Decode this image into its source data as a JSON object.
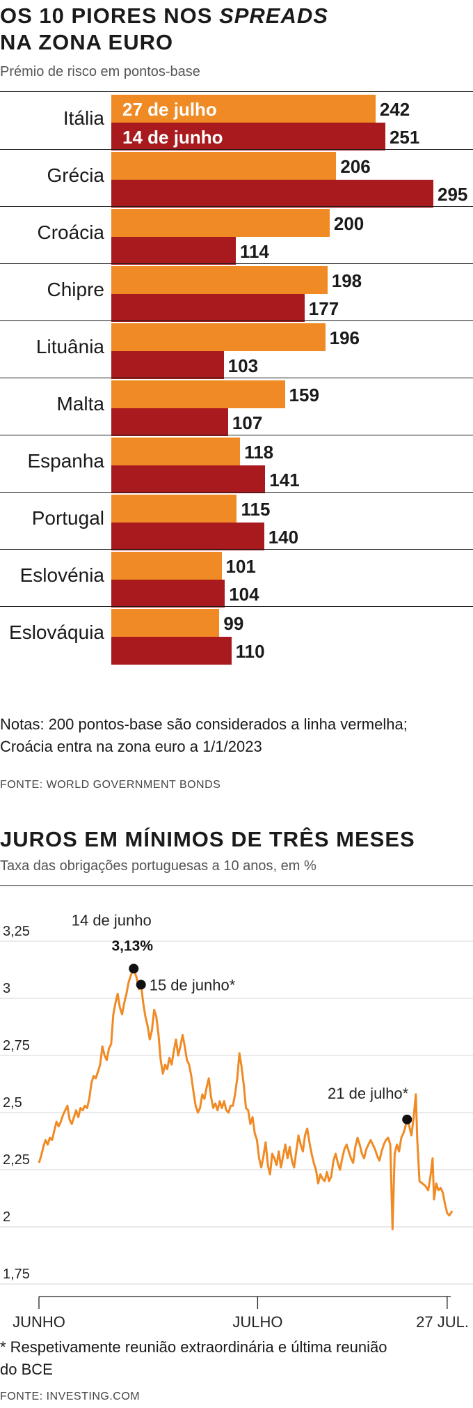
{
  "bar_section": {
    "title_part1": "OS 10 PIORES NOS ",
    "title_italic": "SPREADS",
    "title_line2": "NA ZONA EURO",
    "subtitle": "Prémio de risco em pontos-base",
    "notes_line1": "Notas: 200 pontos-base são considerados a linha vermelha;",
    "notes_line2": "Croácia entra na zona euro a 1/1/2023",
    "source": "FONTE: WORLD GOVERNMENT BONDS"
  },
  "line_section": {
    "title": "JUROS EM MÍNIMOS DE TRÊS MESES",
    "subtitle": "Taxa das obrigações portuguesas a 10 anos, em %",
    "footnote_line1": "* Respetivamente reunião extraordinária e última reunião",
    "footnote_line2": "do BCE",
    "source": "FONTE: INVESTING.COM"
  },
  "colors": {
    "orange": "#f08a24",
    "dark_red": "#a81a1e",
    "line": "#f08a24"
  },
  "chart_data": [
    {
      "type": "bar",
      "title": "OS 10 PIORES NOS SPREADS NA ZONA EURO",
      "subtitle": "Prémio de risco em pontos-base",
      "categories": [
        "Itália",
        "Grécia",
        "Croácia",
        "Chipre",
        "Lituânia",
        "Malta",
        "Espanha",
        "Portugal",
        "Eslovénia",
        "Eslováquia"
      ],
      "series": [
        {
          "name": "27 de julho",
          "color": "#f08a24",
          "values": [
            242,
            206,
            200,
            198,
            196,
            159,
            118,
            115,
            101,
            99
          ]
        },
        {
          "name": "14 de junho",
          "color": "#a81a1e",
          "values": [
            251,
            295,
            114,
            177,
            103,
            107,
            141,
            140,
            104,
            110
          ]
        }
      ],
      "orientation": "horizontal",
      "xlim": [
        0,
        295
      ],
      "legend": "inside-first-bars"
    },
    {
      "type": "line",
      "title": "JUROS EM MÍNIMOS DE TRÊS MESES",
      "subtitle": "Taxa das obrigações portuguesas a 10 anos, em %",
      "ylim": [
        1.75,
        3.25
      ],
      "yticks": [
        3.25,
        3,
        2.75,
        2.5,
        2.25,
        2,
        1.75
      ],
      "ytick_labels": [
        "3,25",
        "3",
        "2,75",
        "2,5",
        "2,25",
        "2",
        "1,75"
      ],
      "xticks": [
        {
          "label": "JUNHO",
          "day": 0
        },
        {
          "label": "JULHO",
          "day": 30
        },
        {
          "label": "27 JUL.",
          "day": 56
        }
      ],
      "grid": true,
      "annotations": [
        {
          "label": "14 de junho",
          "value_label": "3,13%",
          "day": 13,
          "y": 3.13
        },
        {
          "label": "15 de junho*",
          "day": 14,
          "y": 3.06
        },
        {
          "label": "21 de julho*",
          "day": 50.5,
          "y": 2.47
        }
      ],
      "points": [
        [
          0,
          2.28
        ],
        [
          0.3,
          2.31
        ],
        [
          0.6,
          2.35
        ],
        [
          0.9,
          2.38
        ],
        [
          1.2,
          2.36
        ],
        [
          1.5,
          2.39
        ],
        [
          1.8,
          2.38
        ],
        [
          2.1,
          2.42
        ],
        [
          2.4,
          2.46
        ],
        [
          2.7,
          2.44
        ],
        [
          3.0,
          2.46
        ],
        [
          3.3,
          2.49
        ],
        [
          3.6,
          2.51
        ],
        [
          3.9,
          2.53
        ],
        [
          4.2,
          2.47
        ],
        [
          4.5,
          2.45
        ],
        [
          4.8,
          2.48
        ],
        [
          5.1,
          2.51
        ],
        [
          5.4,
          2.48
        ],
        [
          5.7,
          2.52
        ],
        [
          6.0,
          2.51
        ],
        [
          6.3,
          2.53
        ],
        [
          6.6,
          2.52
        ],
        [
          6.9,
          2.56
        ],
        [
          7.2,
          2.63
        ],
        [
          7.5,
          2.66
        ],
        [
          7.8,
          2.65
        ],
        [
          8.1,
          2.68
        ],
        [
          8.4,
          2.71
        ],
        [
          8.7,
          2.79
        ],
        [
          9.0,
          2.75
        ],
        [
          9.3,
          2.73
        ],
        [
          9.6,
          2.78
        ],
        [
          9.9,
          2.8
        ],
        [
          10.2,
          2.93
        ],
        [
          10.5,
          2.98
        ],
        [
          10.8,
          3.02
        ],
        [
          11.1,
          2.96
        ],
        [
          11.4,
          2.93
        ],
        [
          11.7,
          2.98
        ],
        [
          12.0,
          3.02
        ],
        [
          12.3,
          3.07
        ],
        [
          12.6,
          3.1
        ],
        [
          13.0,
          3.13
        ],
        [
          13.4,
          3.09
        ],
        [
          13.7,
          3.04
        ],
        [
          14.0,
          3.06
        ],
        [
          14.3,
          2.98
        ],
        [
          14.6,
          2.92
        ],
        [
          14.9,
          2.88
        ],
        [
          15.2,
          2.82
        ],
        [
          15.5,
          2.86
        ],
        [
          15.8,
          2.95
        ],
        [
          16.1,
          2.92
        ],
        [
          16.4,
          2.84
        ],
        [
          16.7,
          2.73
        ],
        [
          17.0,
          2.67
        ],
        [
          17.3,
          2.71
        ],
        [
          17.6,
          2.69
        ],
        [
          17.9,
          2.74
        ],
        [
          18.2,
          2.71
        ],
        [
          18.5,
          2.77
        ],
        [
          18.8,
          2.82
        ],
        [
          19.1,
          2.75
        ],
        [
          19.4,
          2.79
        ],
        [
          19.7,
          2.84
        ],
        [
          20.0,
          2.79
        ],
        [
          20.3,
          2.73
        ],
        [
          20.6,
          2.71
        ],
        [
          20.9,
          2.66
        ],
        [
          21.2,
          2.59
        ],
        [
          21.5,
          2.53
        ],
        [
          21.8,
          2.5
        ],
        [
          22.1,
          2.52
        ],
        [
          22.4,
          2.58
        ],
        [
          22.7,
          2.56
        ],
        [
          23.0,
          2.61
        ],
        [
          23.3,
          2.65
        ],
        [
          23.6,
          2.57
        ],
        [
          23.9,
          2.52
        ],
        [
          24.2,
          2.54
        ],
        [
          24.5,
          2.51
        ],
        [
          24.8,
          2.55
        ],
        [
          25.1,
          2.52
        ],
        [
          25.4,
          2.55
        ],
        [
          25.7,
          2.51
        ],
        [
          26.0,
          2.5
        ],
        [
          26.3,
          2.53
        ],
        [
          26.6,
          2.53
        ],
        [
          26.9,
          2.58
        ],
        [
          27.2,
          2.65
        ],
        [
          27.5,
          2.76
        ],
        [
          27.8,
          2.7
        ],
        [
          28.1,
          2.62
        ],
        [
          28.4,
          2.52
        ],
        [
          28.7,
          2.51
        ],
        [
          29.0,
          2.45
        ],
        [
          29.3,
          2.48
        ],
        [
          29.6,
          2.41
        ],
        [
          29.9,
          2.38
        ],
        [
          30.2,
          2.3
        ],
        [
          30.5,
          2.26
        ],
        [
          30.8,
          2.31
        ],
        [
          31.1,
          2.37
        ],
        [
          31.4,
          2.27
        ],
        [
          31.7,
          2.23
        ],
        [
          32.0,
          2.32
        ],
        [
          32.3,
          2.3
        ],
        [
          32.6,
          2.27
        ],
        [
          32.9,
          2.33
        ],
        [
          33.2,
          2.26
        ],
        [
          33.5,
          2.31
        ],
        [
          33.8,
          2.36
        ],
        [
          34.1,
          2.3
        ],
        [
          34.4,
          2.35
        ],
        [
          34.7,
          2.29
        ],
        [
          35.0,
          2.26
        ],
        [
          35.3,
          2.33
        ],
        [
          35.6,
          2.4
        ],
        [
          35.9,
          2.36
        ],
        [
          36.2,
          2.33
        ],
        [
          36.5,
          2.4
        ],
        [
          36.8,
          2.43
        ],
        [
          37.1,
          2.37
        ],
        [
          37.4,
          2.32
        ],
        [
          37.7,
          2.28
        ],
        [
          38.0,
          2.25
        ],
        [
          38.3,
          2.19
        ],
        [
          38.6,
          2.23
        ],
        [
          38.9,
          2.21
        ],
        [
          39.2,
          2.2
        ],
        [
          39.5,
          2.24
        ],
        [
          39.8,
          2.2
        ],
        [
          40.1,
          2.22
        ],
        [
          40.4,
          2.29
        ],
        [
          40.7,
          2.32
        ],
        [
          41.0,
          2.28
        ],
        [
          41.3,
          2.25
        ],
        [
          41.6,
          2.3
        ],
        [
          41.9,
          2.34
        ],
        [
          42.2,
          2.36
        ],
        [
          42.5,
          2.33
        ],
        [
          42.8,
          2.3
        ],
        [
          43.1,
          2.28
        ],
        [
          43.4,
          2.35
        ],
        [
          43.7,
          2.39
        ],
        [
          44.0,
          2.36
        ],
        [
          44.3,
          2.32
        ],
        [
          44.6,
          2.3
        ],
        [
          44.9,
          2.34
        ],
        [
          45.2,
          2.36
        ],
        [
          45.5,
          2.38
        ],
        [
          45.8,
          2.36
        ],
        [
          46.1,
          2.34
        ],
        [
          46.4,
          2.31
        ],
        [
          46.7,
          2.29
        ],
        [
          47.0,
          2.33
        ],
        [
          47.3,
          2.36
        ],
        [
          47.6,
          2.38
        ],
        [
          47.9,
          2.39
        ],
        [
          48.2,
          2.36
        ],
        [
          48.5,
          1.99
        ],
        [
          48.8,
          2.32
        ],
        [
          49.1,
          2.36
        ],
        [
          49.4,
          2.33
        ],
        [
          49.7,
          2.39
        ],
        [
          50.0,
          2.41
        ],
        [
          50.2,
          2.43
        ],
        [
          50.5,
          2.47
        ],
        [
          50.8,
          2.44
        ],
        [
          51.1,
          2.4
        ],
        [
          51.4,
          2.48
        ],
        [
          51.7,
          2.58
        ],
        [
          51.9,
          2.38
        ],
        [
          52.2,
          2.2
        ],
        [
          52.6,
          2.19
        ],
        [
          53.0,
          2.18
        ],
        [
          53.4,
          2.16
        ],
        [
          53.7,
          2.22
        ],
        [
          54.0,
          2.3
        ],
        [
          54.2,
          2.12
        ],
        [
          54.5,
          2.19
        ],
        [
          54.8,
          2.16
        ],
        [
          55.1,
          2.17
        ],
        [
          55.4,
          2.15
        ],
        [
          55.7,
          2.1
        ],
        [
          56.0,
          2.06
        ],
        [
          56.3,
          2.05
        ],
        [
          56.7,
          2.07
        ]
      ]
    }
  ]
}
